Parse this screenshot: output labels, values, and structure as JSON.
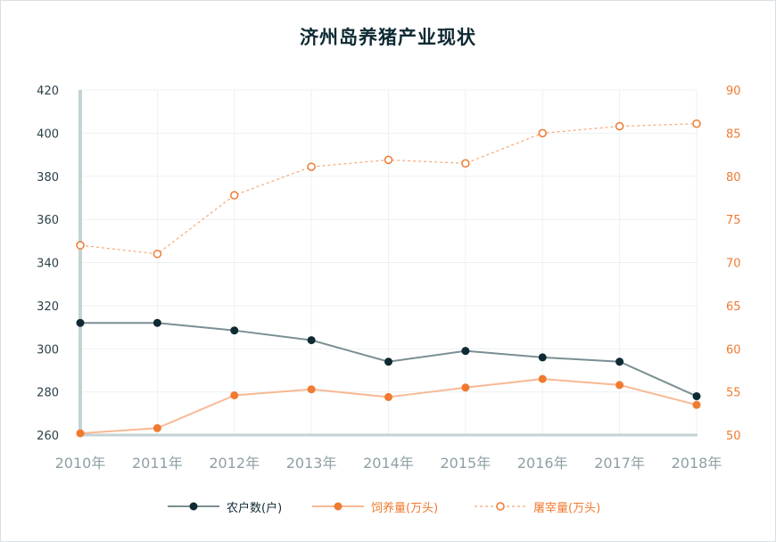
{
  "chart_data": {
    "type": "line",
    "title": "济州岛养猪产业现状",
    "categories": [
      "2010年",
      "2011年",
      "2012年",
      "2013年",
      "2014年",
      "2015年",
      "2016年",
      "2017年",
      "2018年"
    ],
    "left_axis": {
      "ylim": [
        260,
        420
      ],
      "ticks": [
        260,
        280,
        300,
        320,
        340,
        360,
        380,
        400,
        420
      ],
      "color": "#2b3f48"
    },
    "right_axis": {
      "ylim": [
        50,
        90
      ],
      "ticks": [
        50,
        55,
        60,
        65,
        70,
        75,
        80,
        85,
        90
      ],
      "color": "#f07a30"
    },
    "grid": true,
    "legend_position": "bottom",
    "series": [
      {
        "name": "农户数(户)",
        "axis": "left",
        "style": "solid-filled",
        "color": "#7a8e93",
        "marker_color": "#0e2a33",
        "values": [
          312,
          312,
          308.5,
          304,
          294,
          299,
          296,
          294,
          278
        ]
      },
      {
        "name": "饲养量(万头)",
        "axis": "right",
        "style": "solid-filled",
        "color": "#f7b994",
        "marker_color": "#f07a30",
        "values": [
          50.2,
          50.8,
          54.6,
          55.3,
          54.4,
          55.5,
          56.5,
          55.8,
          53.5
        ]
      },
      {
        "name": "屠宰量(万头)",
        "axis": "right",
        "style": "dashed-open",
        "color": "#f5a878",
        "marker_color": "#f07a30",
        "values": [
          72,
          71,
          77.8,
          81.1,
          81.9,
          81.5,
          85,
          85.8,
          86.1
        ]
      }
    ]
  }
}
